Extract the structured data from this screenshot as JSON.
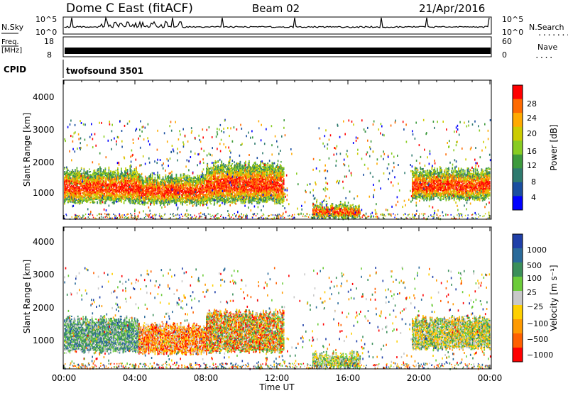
{
  "header": {
    "station": "Dome C East (fitACF)",
    "beam": "Beam 02",
    "date": "21/Apr/2016"
  },
  "sky_panel": {
    "left_label": "N.Sky",
    "right_label": "N.Search",
    "left_ticks": [
      "10^5",
      "10^0"
    ],
    "right_ticks": [
      "10^5",
      "10^0"
    ],
    "right_legend_dots": "......."
  },
  "freq_panel": {
    "left_label_1": "Freq.",
    "left_label_2": "[MHz]",
    "right_label": "Nave",
    "left_ticks": [
      "18",
      "8"
    ],
    "right_ticks": [
      "60",
      "0"
    ],
    "right_legend_dots": "...."
  },
  "cpid": {
    "label": "CPID",
    "value": "twofsound 3501"
  },
  "power_panel": {
    "ylabel": "Slant Range [km]",
    "yticks": [
      "4000",
      "3000",
      "2000",
      "1000"
    ],
    "colorbar_label": "Power [dB]",
    "colorbar_ticks": [
      "28",
      "24",
      "20",
      "16",
      "12",
      "8",
      "4"
    ],
    "colorbar_colors": [
      "#ff0000",
      "#ff6a00",
      "#ffaa00",
      "#cccc00",
      "#88cc22",
      "#3d9a3d",
      "#2e7a6e",
      "#1a4ea0",
      "#0000ff"
    ]
  },
  "velocity_panel": {
    "ylabel": "Slant Range [km]",
    "yticks": [
      "4000",
      "3000",
      "2000",
      "1000"
    ],
    "colorbar_label": "Velocity [m s⁻¹]",
    "colorbar_ticks": [
      "1000",
      "500",
      "100",
      "25",
      "−25",
      "−100",
      "−500",
      "−1000"
    ],
    "colorbar_colors": [
      "#1f3fa8",
      "#2a6a9a",
      "#3b8f5a",
      "#6ccc3a",
      "#c8c8c8",
      "#ffd000",
      "#ff9a00",
      "#ff6000",
      "#ff0000"
    ]
  },
  "xaxis": {
    "ticks": [
      "00:00",
      "04:00",
      "08:00",
      "12:00",
      "16:00",
      "20:00",
      "00:00"
    ],
    "label": "Time UT"
  },
  "chart_data": [
    {
      "type": "heatmap",
      "title": "Power [dB]",
      "xlabel": "Time UT",
      "ylabel": "Slant Range [km]",
      "xlim": [
        0,
        24
      ],
      "ylim": [
        180,
        4600
      ],
      "colorbar": {
        "label": "Power [dB]",
        "ticks": [
          28,
          24,
          20,
          16,
          12,
          8,
          4
        ]
      },
      "regions": [
        {
          "t": [
            0,
            4.2
          ],
          "range": [
            700,
            1700
          ],
          "level": "18-28 dB"
        },
        {
          "t": [
            4.2,
            8.0
          ],
          "range": [
            650,
            1500
          ],
          "level": "16-28 dB"
        },
        {
          "t": [
            8.0,
            12.4
          ],
          "range": [
            700,
            1900
          ],
          "level": "16-28 dB"
        },
        {
          "t": [
            14.0,
            16.7
          ],
          "range": [
            200,
            600
          ],
          "level": "20-28 dB"
        },
        {
          "t": [
            19.6,
            24.0
          ],
          "range": [
            800,
            1700
          ],
          "level": "8-28 dB"
        }
      ]
    },
    {
      "type": "heatmap",
      "title": "Velocity [m s⁻¹]",
      "xlabel": "Time UT",
      "ylabel": "Slant Range [km]",
      "xlim": [
        0,
        24
      ],
      "ylim": [
        180,
        4600
      ],
      "colorbar": {
        "label": "Velocity [m s⁻¹]",
        "ticks": [
          1000,
          500,
          100,
          25,
          -25,
          -100,
          -500,
          -1000
        ]
      },
      "regions": [
        {
          "t": [
            0,
            4.2
          ],
          "range": [
            700,
            1700
          ],
          "level": "100 to 500"
        },
        {
          "t": [
            4.2,
            8.0
          ],
          "range": [
            650,
            1500
          ],
          "level": "-500 to 100"
        },
        {
          "t": [
            8.0,
            12.4
          ],
          "range": [
            700,
            1900
          ],
          "level": "-500 to 500"
        },
        {
          "t": [
            14.0,
            16.7
          ],
          "range": [
            200,
            600
          ],
          "level": "-100 to 100"
        },
        {
          "t": [
            19.6,
            24.0
          ],
          "range": [
            800,
            1700
          ],
          "level": "-100 to 100"
        }
      ]
    }
  ]
}
